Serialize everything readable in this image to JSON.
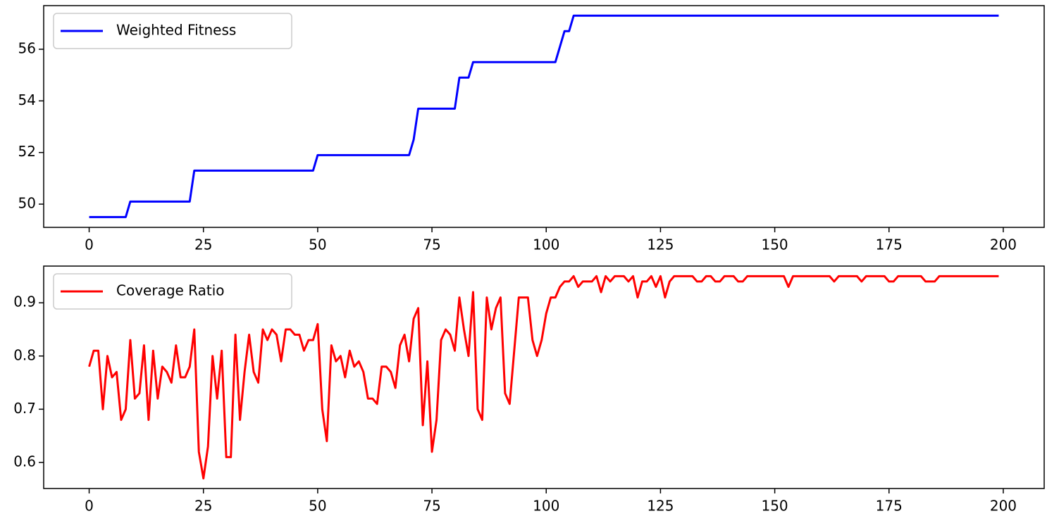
{
  "chart_data": [
    {
      "type": "line",
      "legend": "upper left",
      "xlim": [
        -9.95,
        208.95
      ],
      "ylim": [
        49.1,
        57.69
      ],
      "xticks": [
        0,
        25,
        50,
        75,
        100,
        125,
        150,
        175,
        200
      ],
      "yticks": [
        50,
        52,
        54,
        56
      ],
      "x": [
        0,
        1,
        2,
        3,
        4,
        5,
        6,
        7,
        8,
        9,
        10,
        11,
        12,
        13,
        14,
        15,
        16,
        17,
        18,
        19,
        20,
        21,
        22,
        23,
        24,
        25,
        26,
        27,
        28,
        29,
        30,
        31,
        32,
        33,
        34,
        35,
        36,
        37,
        38,
        39,
        40,
        41,
        42,
        43,
        44,
        45,
        46,
        47,
        48,
        49,
        50,
        51,
        52,
        53,
        54,
        55,
        56,
        57,
        58,
        59,
        60,
        61,
        62,
        63,
        64,
        65,
        66,
        67,
        68,
        69,
        70,
        71,
        72,
        73,
        74,
        75,
        76,
        77,
        78,
        79,
        80,
        81,
        82,
        83,
        84,
        85,
        86,
        87,
        88,
        89,
        90,
        91,
        92,
        93,
        94,
        95,
        96,
        97,
        98,
        99,
        100,
        101,
        102,
        103,
        104,
        105,
        106,
        107,
        108,
        109,
        110,
        111,
        112,
        113,
        114,
        115,
        116,
        117,
        118,
        119,
        120,
        121,
        122,
        123,
        124,
        125,
        126,
        127,
        128,
        129,
        130,
        131,
        132,
        133,
        134,
        135,
        136,
        137,
        138,
        139,
        140,
        141,
        142,
        143,
        144,
        145,
        146,
        147,
        148,
        149,
        150,
        151,
        152,
        153,
        154,
        155,
        156,
        157,
        158,
        159,
        160,
        161,
        162,
        163,
        164,
        165,
        166,
        167,
        168,
        169,
        170,
        171,
        172,
        173,
        174,
        175,
        176,
        177,
        178,
        179,
        180,
        181,
        182,
        183,
        184,
        185,
        186,
        187,
        188,
        189,
        190,
        191,
        192,
        193,
        194,
        195,
        196,
        197,
        198,
        199
      ],
      "series": [
        {
          "name": "Weighted Fitness",
          "color": "#0000ff",
          "values": [
            49.5,
            49.5,
            49.5,
            49.5,
            49.5,
            49.5,
            49.5,
            49.5,
            49.5,
            50.1,
            50.1,
            50.1,
            50.1,
            50.1,
            50.1,
            50.1,
            50.1,
            50.1,
            50.1,
            50.1,
            50.1,
            50.1,
            50.1,
            51.3,
            51.3,
            51.3,
            51.3,
            51.3,
            51.3,
            51.3,
            51.3,
            51.3,
            51.3,
            51.3,
            51.3,
            51.3,
            51.3,
            51.3,
            51.3,
            51.3,
            51.3,
            51.3,
            51.3,
            51.3,
            51.3,
            51.3,
            51.3,
            51.3,
            51.3,
            51.3,
            51.9,
            51.9,
            51.9,
            51.9,
            51.9,
            51.9,
            51.9,
            51.9,
            51.9,
            51.9,
            51.9,
            51.9,
            51.9,
            51.9,
            51.9,
            51.9,
            51.9,
            51.9,
            51.9,
            51.9,
            51.9,
            52.5,
            53.7,
            53.7,
            53.7,
            53.7,
            53.7,
            53.7,
            53.7,
            53.7,
            53.7,
            54.9,
            54.9,
            54.9,
            55.5,
            55.5,
            55.5,
            55.5,
            55.5,
            55.5,
            55.5,
            55.5,
            55.5,
            55.5,
            55.5,
            55.5,
            55.5,
            55.5,
            55.5,
            55.5,
            55.5,
            55.5,
            55.5,
            56.1,
            56.7,
            56.7,
            57.3,
            57.3,
            57.3,
            57.3,
            57.3,
            57.3,
            57.3,
            57.3,
            57.3,
            57.3,
            57.3,
            57.3,
            57.3,
            57.3,
            57.3,
            57.3,
            57.3,
            57.3,
            57.3,
            57.3,
            57.3,
            57.3,
            57.3,
            57.3,
            57.3,
            57.3,
            57.3,
            57.3,
            57.3,
            57.3,
            57.3,
            57.3,
            57.3,
            57.3,
            57.3,
            57.3,
            57.3,
            57.3,
            57.3,
            57.3,
            57.3,
            57.3,
            57.3,
            57.3,
            57.3,
            57.3,
            57.3,
            57.3,
            57.3,
            57.3,
            57.3,
            57.3,
            57.3,
            57.3,
            57.3,
            57.3,
            57.3,
            57.3,
            57.3,
            57.3,
            57.3,
            57.3,
            57.3,
            57.3,
            57.3,
            57.3,
            57.3,
            57.3,
            57.3,
            57.3,
            57.3,
            57.3,
            57.3,
            57.3,
            57.3,
            57.3,
            57.3,
            57.3,
            57.3,
            57.3,
            57.3,
            57.3,
            57.3,
            57.3,
            57.3,
            57.3,
            57.3,
            57.3,
            57.3,
            57.3,
            57.3,
            57.3,
            57.3,
            57.3
          ]
        }
      ]
    },
    {
      "type": "line",
      "legend": "upper left",
      "xlim": [
        -9.95,
        208.95
      ],
      "ylim": [
        0.551,
        0.969
      ],
      "xticks": [
        0,
        25,
        50,
        75,
        100,
        125,
        150,
        175,
        200
      ],
      "yticks": [
        0.6,
        0.7,
        0.8,
        0.9
      ],
      "x": [
        0,
        1,
        2,
        3,
        4,
        5,
        6,
        7,
        8,
        9,
        10,
        11,
        12,
        13,
        14,
        15,
        16,
        17,
        18,
        19,
        20,
        21,
        22,
        23,
        24,
        25,
        26,
        27,
        28,
        29,
        30,
        31,
        32,
        33,
        34,
        35,
        36,
        37,
        38,
        39,
        40,
        41,
        42,
        43,
        44,
        45,
        46,
        47,
        48,
        49,
        50,
        51,
        52,
        53,
        54,
        55,
        56,
        57,
        58,
        59,
        60,
        61,
        62,
        63,
        64,
        65,
        66,
        67,
        68,
        69,
        70,
        71,
        72,
        73,
        74,
        75,
        76,
        77,
        78,
        79,
        80,
        81,
        82,
        83,
        84,
        85,
        86,
        87,
        88,
        89,
        90,
        91,
        92,
        93,
        94,
        95,
        96,
        97,
        98,
        99,
        100,
        101,
        102,
        103,
        104,
        105,
        106,
        107,
        108,
        109,
        110,
        111,
        112,
        113,
        114,
        115,
        116,
        117,
        118,
        119,
        120,
        121,
        122,
        123,
        124,
        125,
        126,
        127,
        128,
        129,
        130,
        131,
        132,
        133,
        134,
        135,
        136,
        137,
        138,
        139,
        140,
        141,
        142,
        143,
        144,
        145,
        146,
        147,
        148,
        149,
        150,
        151,
        152,
        153,
        154,
        155,
        156,
        157,
        158,
        159,
        160,
        161,
        162,
        163,
        164,
        165,
        166,
        167,
        168,
        169,
        170,
        171,
        172,
        173,
        174,
        175,
        176,
        177,
        178,
        179,
        180,
        181,
        182,
        183,
        184,
        185,
        186,
        187,
        188,
        189,
        190,
        191,
        192,
        193,
        194,
        195,
        196,
        197,
        198,
        199
      ],
      "series": [
        {
          "name": "Coverage Ratio",
          "color": "#ff0000",
          "values": [
            0.78,
            0.81,
            0.81,
            0.7,
            0.8,
            0.76,
            0.77,
            0.68,
            0.7,
            0.83,
            0.72,
            0.73,
            0.82,
            0.68,
            0.81,
            0.72,
            0.78,
            0.77,
            0.75,
            0.82,
            0.76,
            0.76,
            0.78,
            0.85,
            0.62,
            0.57,
            0.63,
            0.8,
            0.72,
            0.81,
            0.61,
            0.61,
            0.84,
            0.68,
            0.77,
            0.84,
            0.77,
            0.75,
            0.85,
            0.83,
            0.85,
            0.84,
            0.79,
            0.85,
            0.85,
            0.84,
            0.84,
            0.81,
            0.83,
            0.83,
            0.86,
            0.7,
            0.64,
            0.82,
            0.79,
            0.8,
            0.76,
            0.81,
            0.78,
            0.79,
            0.77,
            0.72,
            0.72,
            0.71,
            0.78,
            0.78,
            0.77,
            0.74,
            0.82,
            0.84,
            0.79,
            0.87,
            0.89,
            0.67,
            0.79,
            0.62,
            0.68,
            0.83,
            0.85,
            0.84,
            0.81,
            0.91,
            0.85,
            0.8,
            0.92,
            0.7,
            0.68,
            0.91,
            0.85,
            0.89,
            0.91,
            0.73,
            0.71,
            0.81,
            0.91,
            0.91,
            0.91,
            0.83,
            0.8,
            0.83,
            0.88,
            0.91,
            0.91,
            0.93,
            0.94,
            0.94,
            0.95,
            0.93,
            0.94,
            0.94,
            0.94,
            0.95,
            0.92,
            0.95,
            0.94,
            0.95,
            0.95,
            0.95,
            0.94,
            0.95,
            0.91,
            0.94,
            0.94,
            0.95,
            0.93,
            0.95,
            0.91,
            0.94,
            0.95,
            0.95,
            0.95,
            0.95,
            0.95,
            0.94,
            0.94,
            0.95,
            0.95,
            0.94,
            0.94,
            0.95,
            0.95,
            0.95,
            0.94,
            0.94,
            0.95,
            0.95,
            0.95,
            0.95,
            0.95,
            0.95,
            0.95,
            0.95,
            0.95,
            0.93,
            0.95,
            0.95,
            0.95,
            0.95,
            0.95,
            0.95,
            0.95,
            0.95,
            0.95,
            0.94,
            0.95,
            0.95,
            0.95,
            0.95,
            0.95,
            0.94,
            0.95,
            0.95,
            0.95,
            0.95,
            0.95,
            0.94,
            0.94,
            0.95,
            0.95,
            0.95,
            0.95,
            0.95,
            0.95,
            0.94,
            0.94,
            0.94,
            0.95,
            0.95,
            0.95,
            0.95,
            0.95,
            0.95,
            0.95,
            0.95,
            0.95,
            0.95,
            0.95,
            0.95,
            0.95,
            0.95
          ]
        }
      ]
    }
  ]
}
